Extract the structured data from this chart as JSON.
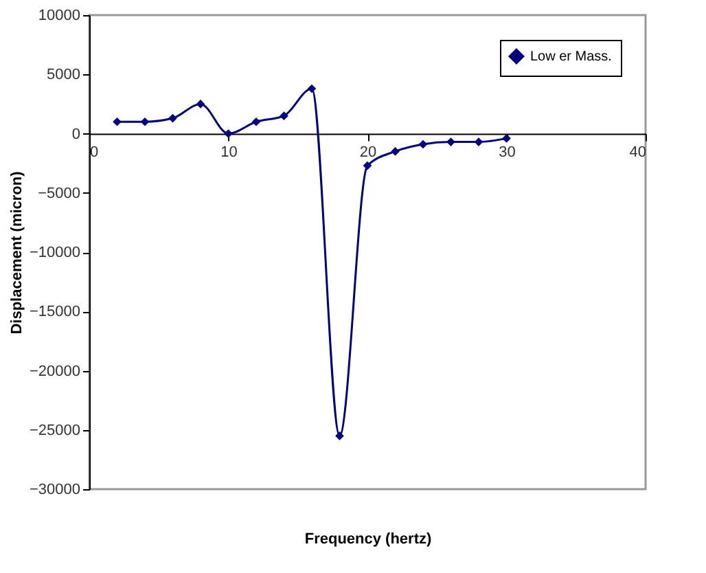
{
  "chart_data": {
    "type": "line",
    "xlabel": "Frequency (hertz)",
    "ylabel": "Displacement (micron)",
    "x": [
      2,
      4,
      6,
      8,
      10,
      12,
      14,
      16,
      18,
      20,
      22,
      24,
      26,
      28,
      30
    ],
    "series": [
      {
        "name": "Low er Mass.",
        "color": "#000080",
        "values": [
          1000,
          1000,
          1300,
          2500,
          0,
          1000,
          1500,
          3800,
          -25500,
          -2700,
          -1500,
          -900,
          -700,
          -700,
          -400
        ]
      }
    ],
    "xlim": [
      0,
      40
    ],
    "xticks": [
      0,
      10,
      20,
      30,
      40
    ],
    "ylim": [
      -30000,
      10000
    ],
    "yticks": [
      -30000,
      -25000,
      -20000,
      -15000,
      -10000,
      -5000,
      0,
      5000,
      10000
    ],
    "grid": false,
    "legend": "top right",
    "marker": "diamond",
    "line_style": "solid"
  }
}
